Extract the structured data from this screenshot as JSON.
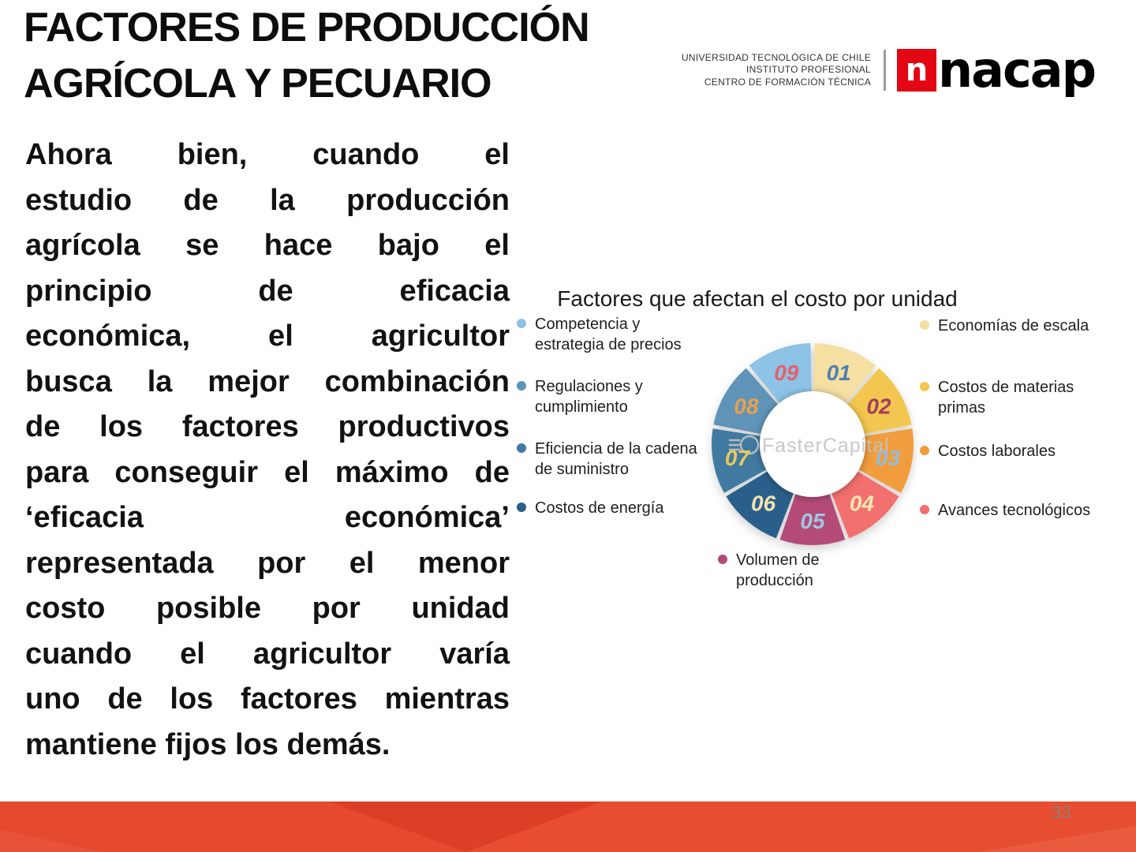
{
  "header": {
    "title_line1": "FACTORES DE PRODUCCIÓN",
    "title_line2": "AGRÍCOLA Y PECUARIO"
  },
  "brand": {
    "org_lines": [
      "UNIVERSIDAD TECNOLÓGICA DE CHILE",
      "INSTITUTO PROFESIONAL",
      "CENTRO DE FORMACIÓN TÉCNICA"
    ],
    "logo_mark": "n",
    "logo_name": "nacap",
    "logo_color": "#E30613"
  },
  "body": {
    "paragraph_lines": [
      "Ahora bien, cuando el",
      "estudio de la producción",
      "agrícola se hace bajo el",
      "principio de eficacia",
      "económica, el agricultor",
      "busca la mejor combinación",
      "de los factores productivos",
      "para conseguir el máximo de",
      "‘eficacia económica’",
      "representada por el menor",
      "costo posible por unidad",
      "cuando el agricultor varía",
      "uno de los factores mientras"
    ],
    "paragraph_last": "mantiene fijos los demás."
  },
  "chart_data": {
    "type": "pie",
    "title": "Factores que afectan el costo por unidad",
    "watermark": "FasterCapital",
    "legend_position": "sides",
    "segments": [
      {
        "num": "01",
        "label": "Economías de escala",
        "value": 1,
        "color": "#F5DFA1",
        "num_color": "#4F80B0"
      },
      {
        "num": "02",
        "label": "Costos de materias primas",
        "value": 1,
        "color": "#F3C74F",
        "num_color": "#A23D5C"
      },
      {
        "num": "03",
        "label": "Costos laborales",
        "value": 1,
        "color": "#F19D3C",
        "num_color": "#90BEDE"
      },
      {
        "num": "04",
        "label": "Avances tecnológicos",
        "value": 1,
        "color": "#F2706E",
        "num_color": "#F6E6B5"
      },
      {
        "num": "05",
        "label": "Volumen de producción",
        "value": 1,
        "color": "#B34B76",
        "num_color": "#A3C6E6"
      },
      {
        "num": "06",
        "label": "Costos de energía",
        "value": 1,
        "color": "#2A5F8B",
        "num_color": "#F3E3AE"
      },
      {
        "num": "07",
        "label": "Eficiencia de la cadena de suministro",
        "value": 1,
        "color": "#417AA1",
        "num_color": "#E9C95C"
      },
      {
        "num": "08",
        "label": "Regulaciones y cumplimiento",
        "value": 1,
        "color": "#5E94B8",
        "num_color": "#E8A04B"
      },
      {
        "num": "09",
        "label": "Competencia y estrategia de precios",
        "value": 1,
        "color": "#8CC3E6",
        "num_color": "#E4606E"
      }
    ],
    "legend_left": [
      {
        "text": "Competencia y\nestrategia de precios",
        "color": "#8CC3E6"
      },
      {
        "text": "Regulaciones y\ncumplimiento",
        "color": "#5E94B8"
      },
      {
        "text": "Eficiencia de la cadena\nde suministro",
        "color": "#417AA1"
      },
      {
        "text": "Costos de energía",
        "color": "#2A5F8B"
      }
    ],
    "legend_right": [
      {
        "text": "Economías de escala",
        "color": "#F5DFA1"
      },
      {
        "text": "Costos de materias\nprimas",
        "color": "#F3C74F"
      },
      {
        "text": "Costos laborales",
        "color": "#F19D3C"
      },
      {
        "text": "Avances tecnológicos",
        "color": "#F2706E"
      }
    ],
    "legend_bottom": [
      {
        "text": "Volumen de\nproducción",
        "color": "#B34B76"
      }
    ]
  },
  "footer": {
    "page_number": "33",
    "bar_color": "#E5492E"
  }
}
